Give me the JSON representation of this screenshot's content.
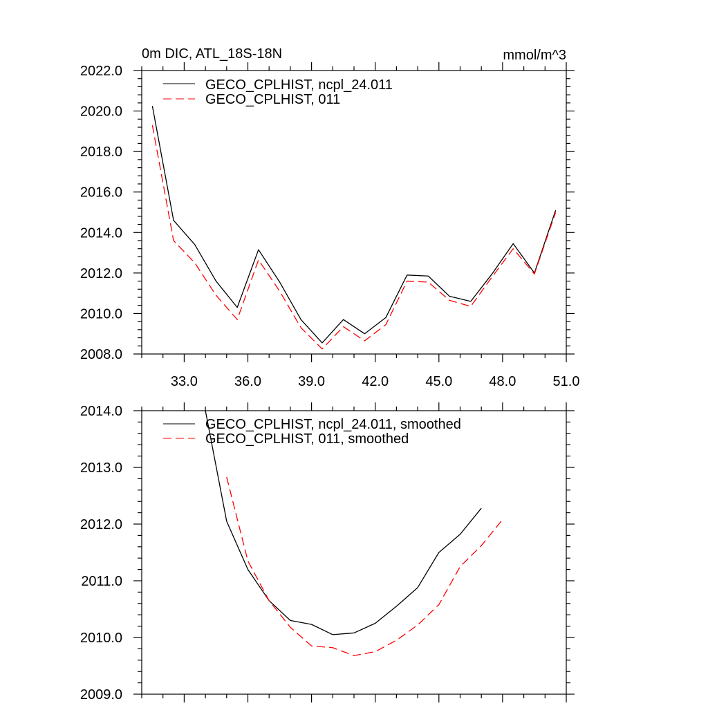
{
  "chart_data": [
    {
      "type": "line",
      "title": "0m DIC, ATL_18S-18N",
      "units": "mmol/m^3",
      "xlim": [
        31.0,
        51.0
      ],
      "ylim": [
        2008.0,
        2022.0
      ],
      "x_major_ticks": [
        33,
        36,
        39,
        42,
        45,
        48,
        51
      ],
      "x_tick_labels": [
        "33.0",
        "36.0",
        "39.0",
        "42.0",
        "45.0",
        "48.0",
        "51.0"
      ],
      "y_major_ticks": [
        2008,
        2010,
        2012,
        2014,
        2016,
        2018,
        2020,
        2022
      ],
      "y_tick_labels": [
        "2008.0",
        "2010.0",
        "2012.0",
        "2014.0",
        "2016.0",
        "2018.0",
        "2020.0",
        "2022.0"
      ],
      "x": [
        31.5,
        32.5,
        33.5,
        34.5,
        35.5,
        36.5,
        37.5,
        38.5,
        39.5,
        40.5,
        41.5,
        42.5,
        43.5,
        44.5,
        45.5,
        46.5,
        47.5,
        48.5,
        49.5,
        50.5
      ],
      "series": [
        {
          "name": "GECO_CPLHIST, ncpl_24.011",
          "color": "#000000",
          "dash": "solid",
          "values": [
            2020.25,
            2014.6,
            2013.4,
            2011.6,
            2010.3,
            2013.15,
            2011.55,
            2009.7,
            2008.55,
            2009.7,
            2009.0,
            2009.8,
            2011.9,
            2011.85,
            2010.85,
            2010.6,
            2011.95,
            2013.45,
            2012.0,
            2015.1
          ]
        },
        {
          "name": "GECO_CPLHIST, 011",
          "color": "#ff0000",
          "dash": "dashed",
          "values": [
            2019.3,
            2013.6,
            2012.5,
            2010.9,
            2009.7,
            2012.65,
            2011.1,
            2009.3,
            2008.25,
            2009.35,
            2008.65,
            2009.45,
            2011.6,
            2011.55,
            2010.65,
            2010.35,
            2011.8,
            2013.2,
            2011.95,
            2015.0
          ]
        }
      ]
    },
    {
      "type": "line",
      "title": "",
      "xlim": [
        31.0,
        51.0
      ],
      "ylim": [
        2009.0,
        2014.0
      ],
      "x_major_ticks": [
        33,
        36,
        39,
        42,
        45,
        48,
        51
      ],
      "y_major_ticks": [
        2009,
        2010,
        2011,
        2012,
        2013,
        2014
      ],
      "y_tick_labels": [
        "2009.0",
        "2010.0",
        "2011.0",
        "2012.0",
        "2013.0",
        "2014.0"
      ],
      "x": [
        34.0,
        35.0,
        36.0,
        37.0,
        38.0,
        39.0,
        40.0,
        41.0,
        42.0,
        43.0,
        44.0,
        45.0,
        46.0,
        47.0,
        48.0
      ],
      "series": [
        {
          "name": "GECO_CPLHIST, ncpl_24.011, smoothed",
          "color": "#000000",
          "dash": "solid",
          "values": [
            2014.0,
            2012.05,
            2011.2,
            2010.65,
            2010.3,
            2010.23,
            2010.05,
            2010.08,
            2010.25,
            2010.55,
            2010.88,
            2011.5,
            2011.82,
            2012.28,
            null
          ]
        },
        {
          "name": "GECO_CPLHIST, 011, smoothed",
          "color": "#ff0000",
          "dash": "dashed",
          "values": [
            null,
            2012.83,
            2011.35,
            2010.65,
            2010.18,
            2009.85,
            2009.82,
            2009.68,
            2009.75,
            2009.95,
            2010.22,
            2010.58,
            2011.25,
            2011.62,
            2012.08
          ]
        }
      ]
    }
  ]
}
